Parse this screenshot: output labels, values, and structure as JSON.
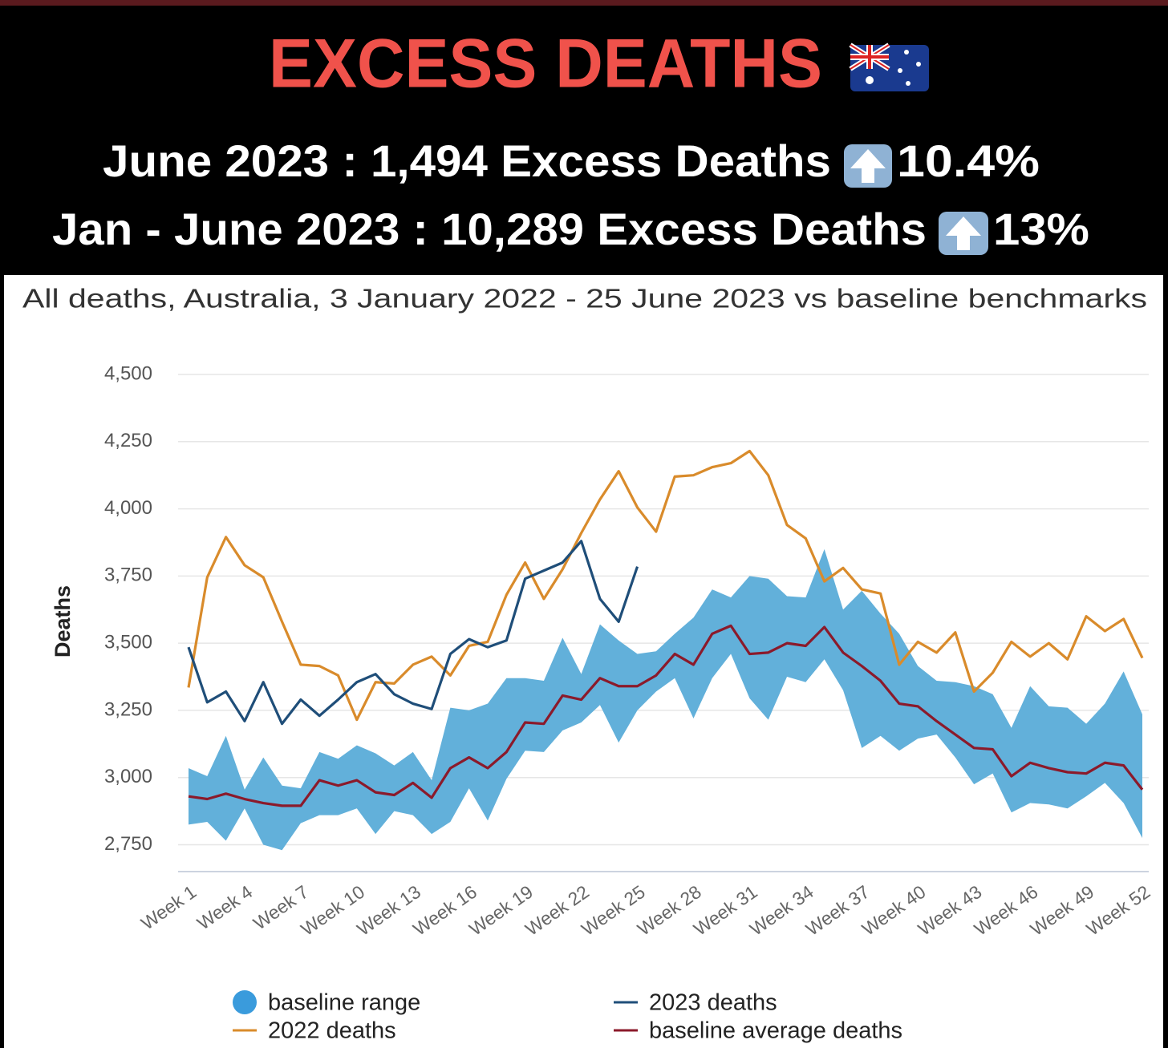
{
  "header": {
    "title": "EXCESS DEATHS",
    "lines": [
      {
        "text": "June 2023 : 1,494 Excess Deaths",
        "change": "10.4%"
      },
      {
        "text": "Jan - June 2023 : 10,289 Excess Deaths",
        "change": "13%"
      }
    ]
  },
  "chart_data": {
    "type": "line",
    "title": "All deaths, Australia, 3 January 2022 - 25 June 2023 vs baseline benchmarks",
    "y_label": "Deaths",
    "categories": [
      "Week 1",
      null,
      null,
      "Week 4",
      null,
      null,
      "Week 7",
      null,
      null,
      "Week 10",
      null,
      null,
      "Week 13",
      null,
      null,
      "Week 16",
      null,
      null,
      "Week 19",
      null,
      null,
      "Week 22",
      null,
      null,
      "Week 25",
      null,
      null,
      "Week 28",
      null,
      null,
      "Week 31",
      null,
      null,
      "Week 34",
      null,
      null,
      "Week 37",
      null,
      null,
      "Week 40",
      null,
      null,
      "Week 43",
      null,
      null,
      "Week 46",
      null,
      null,
      "Week 49",
      null,
      null,
      "Week 52"
    ],
    "ylim": [
      2650,
      4500
    ],
    "yticks": [
      {
        "value": 2750,
        "label": "2,750"
      },
      {
        "value": 3000,
        "label": "3,000"
      },
      {
        "value": 3250,
        "label": "3,250"
      },
      {
        "value": 3500,
        "label": "3,500"
      },
      {
        "value": 3750,
        "label": "3,750"
      },
      {
        "value": 4000,
        "label": "4,000"
      },
      {
        "value": 4250,
        "label": "4,250"
      },
      {
        "value": 4500,
        "label": "4,500"
      }
    ],
    "grid": true,
    "series": [
      {
        "name": "baseline range",
        "color": "#62b0da",
        "low": [
          2825,
          2835,
          2765,
          2885,
          2750,
          2730,
          2830,
          2860,
          2860,
          2885,
          2790,
          2875,
          2860,
          2790,
          2835,
          2960,
          2840,
          2995,
          3100,
          3095,
          3175,
          3205,
          3270,
          3130,
          3250,
          3320,
          3370,
          3220,
          3370,
          3460,
          3295,
          3215,
          3375,
          3355,
          3440,
          3325,
          3110,
          3155,
          3100,
          3145,
          3160,
          3075,
          2975,
          3015,
          2870,
          2905,
          2900,
          2885,
          2930,
          2980,
          2905,
          2775
        ],
        "high": [
          3035,
          3005,
          3155,
          2955,
          3075,
          2970,
          2960,
          3095,
          3070,
          3120,
          3090,
          3045,
          3095,
          2990,
          3260,
          3250,
          3275,
          3370,
          3370,
          3360,
          3520,
          3385,
          3570,
          3510,
          3460,
          3470,
          3535,
          3595,
          3700,
          3670,
          3750,
          3740,
          3675,
          3670,
          3850,
          3625,
          3695,
          3610,
          3535,
          3415,
          3360,
          3355,
          3340,
          3310,
          3185,
          3340,
          3265,
          3260,
          3200,
          3275,
          3395,
          3235
        ]
      },
      {
        "name": "2022 deaths",
        "color": "#d98b2b",
        "values": [
          3335,
          3745,
          3895,
          3790,
          3745,
          3580,
          3420,
          3415,
          3380,
          3215,
          3355,
          3350,
          3420,
          3450,
          3380,
          3490,
          3505,
          3680,
          3800,
          3665,
          3775,
          3910,
          4035,
          4140,
          4005,
          3915,
          4120,
          4125,
          4155,
          4170,
          4215,
          4125,
          3940,
          3890,
          3730,
          3780,
          3700,
          3685,
          3420,
          3505,
          3465,
          3540,
          3320,
          3390,
          3505,
          3450,
          3500,
          3440,
          3600,
          3545,
          3590,
          3445
        ]
      },
      {
        "name": "2023 deaths",
        "color": "#1f4e79",
        "values": [
          3485,
          3280,
          3320,
          3210,
          3355,
          3200,
          3290,
          3230,
          3290,
          3355,
          3385,
          3310,
          3275,
          3255,
          3460,
          3515,
          3485,
          3510,
          3740,
          3770,
          3800,
          3880,
          3665,
          3580,
          3785,
          null,
          null,
          null,
          null,
          null,
          null,
          null,
          null,
          null,
          null,
          null,
          null,
          null,
          null,
          null,
          null,
          null,
          null,
          null,
          null,
          null,
          null,
          null,
          null,
          null,
          null,
          null
        ]
      },
      {
        "name": "baseline average deaths",
        "color": "#8b1a2b",
        "values": [
          2930,
          2920,
          2940,
          2920,
          2905,
          2895,
          2895,
          2990,
          2970,
          2990,
          2945,
          2935,
          2980,
          2925,
          3035,
          3075,
          3035,
          3095,
          3205,
          3200,
          3305,
          3290,
          3370,
          3340,
          3340,
          3380,
          3460,
          3420,
          3535,
          3565,
          3460,
          3465,
          3500,
          3490,
          3560,
          3465,
          3415,
          3360,
          3275,
          3265,
          3210,
          3160,
          3110,
          3105,
          3005,
          3055,
          3035,
          3020,
          3015,
          3055,
          3045,
          2955
        ]
      }
    ]
  }
}
